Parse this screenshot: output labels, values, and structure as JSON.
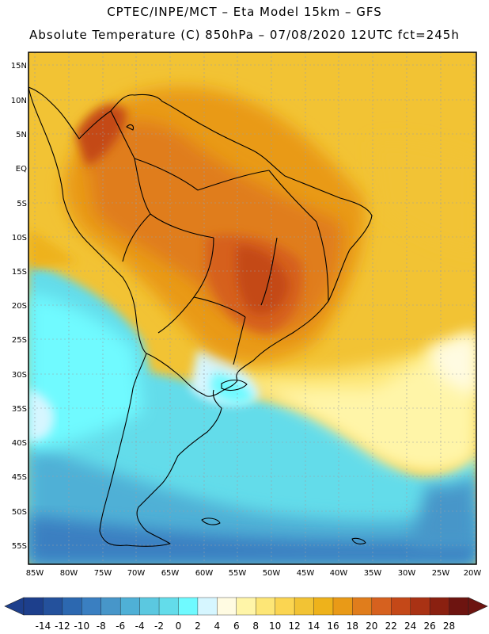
{
  "header": {
    "line1": "CPTEC/INPE/MCT –  Eta Model 15km – GFS",
    "line2": "Absolute Temperature (C) 850hPa – 07/08/2020 12UTC fct=245h"
  },
  "axes": {
    "lat_labels": [
      "15N",
      "10N",
      "5N",
      "EQ",
      "5S",
      "10S",
      "15S",
      "20S",
      "25S",
      "30S",
      "35S",
      "40S",
      "45S",
      "50S",
      "55S"
    ],
    "lon_labels": [
      "85W",
      "80W",
      "75W",
      "70W",
      "65W",
      "60W",
      "55W",
      "50W",
      "45W",
      "40W",
      "35W",
      "30W",
      "25W",
      "20W"
    ]
  },
  "colorbar": {
    "ticks": [
      "-14",
      "-12",
      "-10",
      "-8",
      "-6",
      "-4",
      "-2",
      "0",
      "2",
      "4",
      "6",
      "8",
      "10",
      "12",
      "14",
      "16",
      "18",
      "20",
      "22",
      "24",
      "26",
      "28"
    ],
    "colors": [
      "#1d3f8c",
      "#24519c",
      "#2c68b0",
      "#3a7fc1",
      "#4796c9",
      "#4fb0d6",
      "#5bc8e0",
      "#63dcea",
      "#6ffaff",
      "#d6f6ff",
      "#fffbe2",
      "#fff5a8",
      "#fde676",
      "#fbd551",
      "#f2c334",
      "#eeb21b",
      "#e99a17",
      "#e07d1c",
      "#d6611f",
      "#c44818",
      "#a93214",
      "#8a2010",
      "#6d1410"
    ]
  }
}
